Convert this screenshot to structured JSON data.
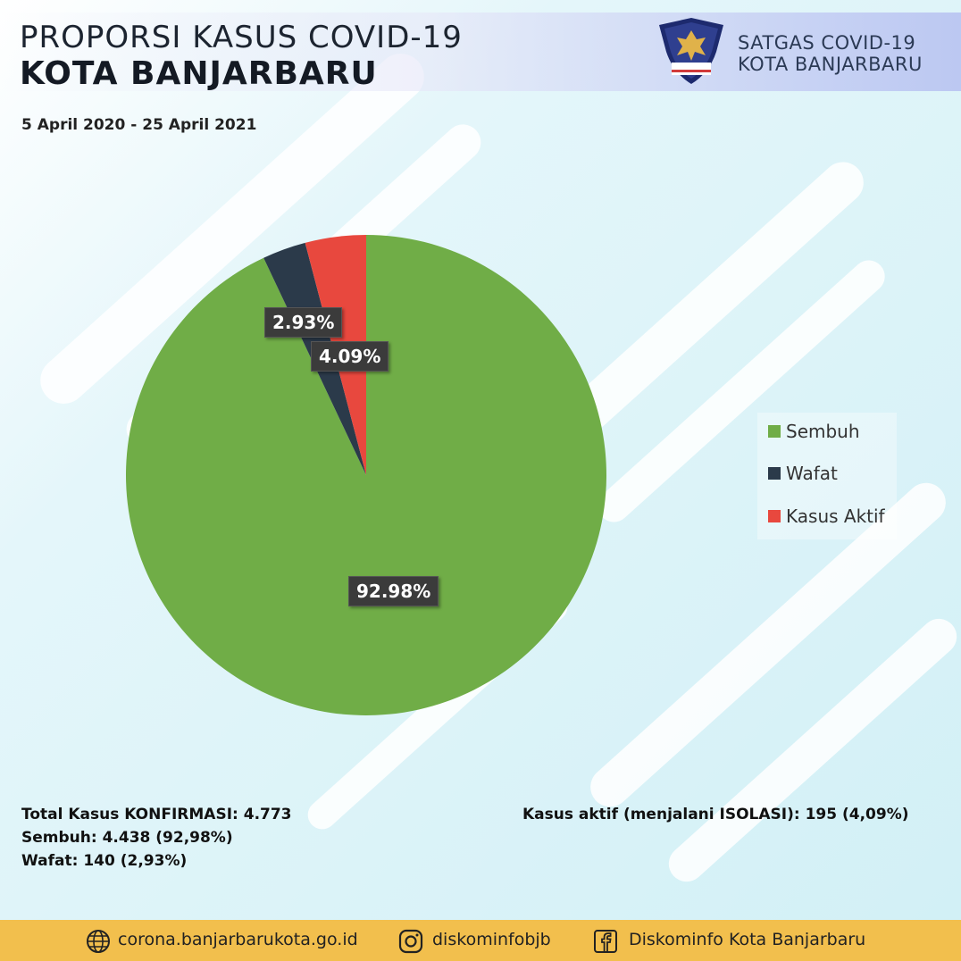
{
  "header": {
    "title_line1": "PROPORSI KASUS COVID-19",
    "title_line2": "KOTA BANJARBARU",
    "date_range": "5 April 2020 - 25 April 2021",
    "org_line1": "SATGAS COVID-19",
    "org_line2": "KOTA BANJARBARU",
    "logo_icon": "garuda-shield-logo-icon"
  },
  "chart_data": {
    "type": "pie",
    "title": "",
    "categories": [
      "Sembuh",
      "Wafat",
      "Kasus Aktif"
    ],
    "values": [
      92.98,
      2.93,
      4.09
    ],
    "data_labels": [
      "92.98%",
      "2.93%",
      "4.09%"
    ],
    "colors": [
      "#70ad47",
      "#2b3a4a",
      "#e8483e"
    ],
    "legend_position": "right"
  },
  "stats": {
    "total": "Total Kasus KONFIRMASI: 4.773",
    "sembuh": "Sembuh: 4.438 (92,98%)",
    "wafat": "Wafat: 140 (2,93%)",
    "aktif": "Kasus aktif (menjalani ISOLASI): 195 (4,09%)"
  },
  "footer": {
    "website": "corona.banjarbarukota.go.id",
    "instagram": "diskominfobjb",
    "facebook": "Diskominfo Kota Banjarbaru",
    "icons": [
      "globe-icon",
      "instagram-icon",
      "facebook-icon"
    ]
  }
}
